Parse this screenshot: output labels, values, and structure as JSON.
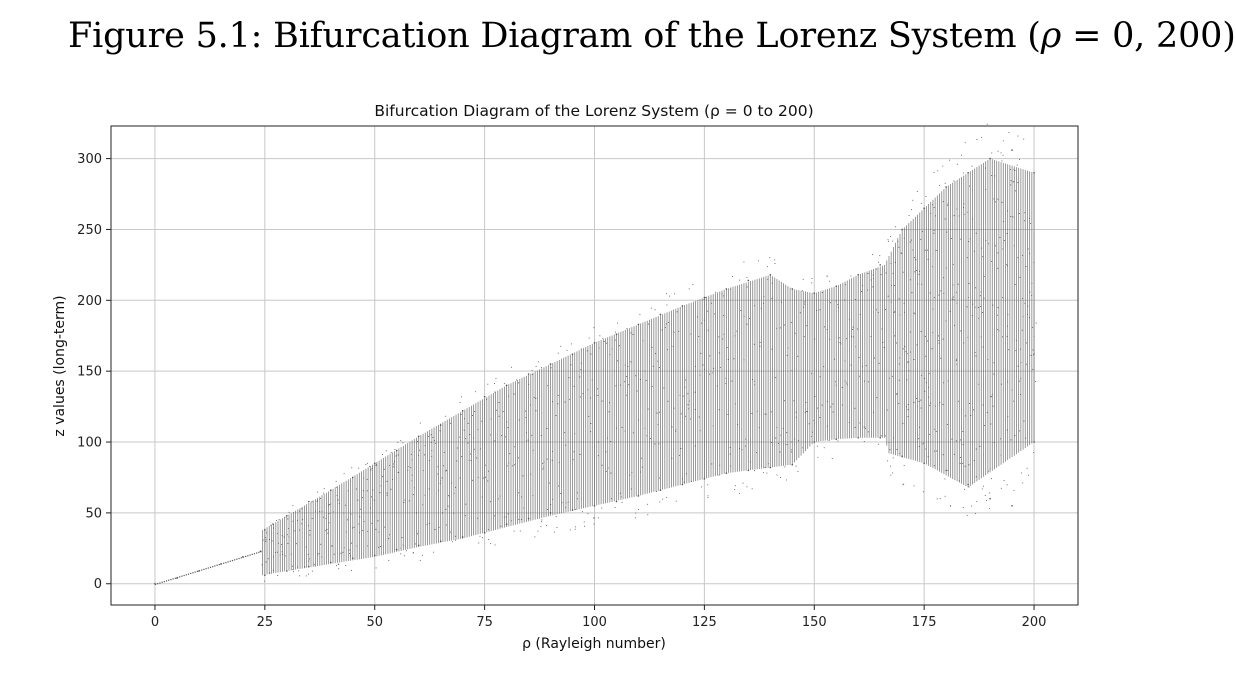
{
  "figure": {
    "caption_prefix": "Figure 5.1: Bifurcation Diagram of the Lorenz System (",
    "caption_rho": "ρ",
    "caption_suffix": " = 0, 200)"
  },
  "chart_data": {
    "type": "scatter",
    "title": "Bifurcation Diagram of the Lorenz System (ρ = 0 to 200)",
    "xlabel": "ρ (Rayleigh number)",
    "ylabel": "z values (long-term)",
    "xlim": [
      -10,
      210
    ],
    "ylim": [
      -15,
      323
    ],
    "xticks": [
      0,
      25,
      50,
      75,
      100,
      125,
      150,
      175,
      200
    ],
    "yticks": [
      0,
      50,
      100,
      150,
      200,
      250,
      300
    ],
    "grid": true,
    "marker_color": "#555555",
    "series": [
      {
        "values_description_note": "",
        "points": [
          [
            0,
            0
          ],
          [
            5,
            4
          ],
          [
            10,
            9
          ],
          [
            15,
            14
          ],
          [
            20,
            19
          ],
          [
            24,
            23
          ],
          [
            25,
            6
          ],
          [
            25,
            38
          ],
          [
            30,
            9
          ],
          [
            30,
            48
          ],
          [
            35,
            12
          ],
          [
            35,
            58
          ],
          [
            40,
            15
          ],
          [
            40,
            66
          ],
          [
            45,
            18
          ],
          [
            45,
            75
          ],
          [
            50,
            20
          ],
          [
            50,
            85
          ],
          [
            55,
            24
          ],
          [
            55,
            94
          ],
          [
            60,
            27
          ],
          [
            60,
            104
          ],
          [
            65,
            30
          ],
          [
            65,
            112
          ],
          [
            70,
            33
          ],
          [
            70,
            122
          ],
          [
            75,
            36
          ],
          [
            75,
            132
          ],
          [
            80,
            42
          ],
          [
            80,
            140
          ],
          [
            85,
            46
          ],
          [
            85,
            148
          ],
          [
            90,
            50
          ],
          [
            90,
            155
          ],
          [
            95,
            52
          ],
          [
            95,
            162
          ],
          [
            100,
            55
          ],
          [
            100,
            170
          ],
          [
            105,
            58
          ],
          [
            105,
            176
          ],
          [
            110,
            62
          ],
          [
            110,
            183
          ],
          [
            115,
            66
          ],
          [
            115,
            190
          ],
          [
            120,
            70
          ],
          [
            120,
            196
          ],
          [
            125,
            74
          ],
          [
            125,
            202
          ],
          [
            130,
            78
          ],
          [
            130,
            208
          ],
          [
            135,
            80
          ],
          [
            135,
            214
          ],
          [
            140,
            82
          ],
          [
            140,
            218
          ],
          [
            145,
            84
          ],
          [
            145,
            208
          ],
          [
            150,
            100
          ],
          [
            150,
            205
          ],
          [
            155,
            102
          ],
          [
            155,
            210
          ],
          [
            160,
            103
          ],
          [
            160,
            218
          ],
          [
            165,
            103
          ],
          [
            165,
            225
          ],
          [
            170,
            90
          ],
          [
            170,
            250
          ],
          [
            175,
            85
          ],
          [
            175,
            265
          ],
          [
            180,
            80
          ],
          [
            180,
            280
          ],
          [
            185,
            70
          ],
          [
            185,
            290
          ],
          [
            190,
            60
          ],
          [
            190,
            300
          ],
          [
            195,
            55
          ],
          [
            195,
            306
          ],
          [
            200,
            100
          ],
          [
            200,
            290
          ]
        ]
      }
    ],
    "bands": {
      "rho_start": 0,
      "rho_end": 200,
      "rho_step": 0.5,
      "lower_curve": [
        [
          24.5,
          6
        ],
        [
          30,
          9
        ],
        [
          40,
          14
        ],
        [
          50,
          19
        ],
        [
          60,
          26
        ],
        [
          70,
          32
        ],
        [
          80,
          40
        ],
        [
          90,
          48
        ],
        [
          100,
          55
        ],
        [
          110,
          62
        ],
        [
          120,
          70
        ],
        [
          130,
          78
        ],
        [
          140,
          82
        ],
        [
          145,
          84
        ],
        [
          150,
          100
        ],
        [
          155,
          102
        ],
        [
          160,
          103
        ],
        [
          166,
          103
        ],
        [
          167,
          92
        ],
        [
          175,
          85
        ],
        [
          185,
          68
        ],
        [
          200,
          100
        ]
      ],
      "upper_curve": [
        [
          24.5,
          38
        ],
        [
          30,
          48
        ],
        [
          40,
          66
        ],
        [
          50,
          85
        ],
        [
          60,
          104
        ],
        [
          70,
          122
        ],
        [
          80,
          140
        ],
        [
          90,
          155
        ],
        [
          100,
          170
        ],
        [
          110,
          183
        ],
        [
          120,
          196
        ],
        [
          130,
          208
        ],
        [
          140,
          218
        ],
        [
          145,
          208
        ],
        [
          150,
          205
        ],
        [
          155,
          210
        ],
        [
          160,
          218
        ],
        [
          166,
          225
        ],
        [
          170,
          250
        ],
        [
          180,
          280
        ],
        [
          190,
          300
        ],
        [
          200,
          290
        ]
      ]
    }
  }
}
